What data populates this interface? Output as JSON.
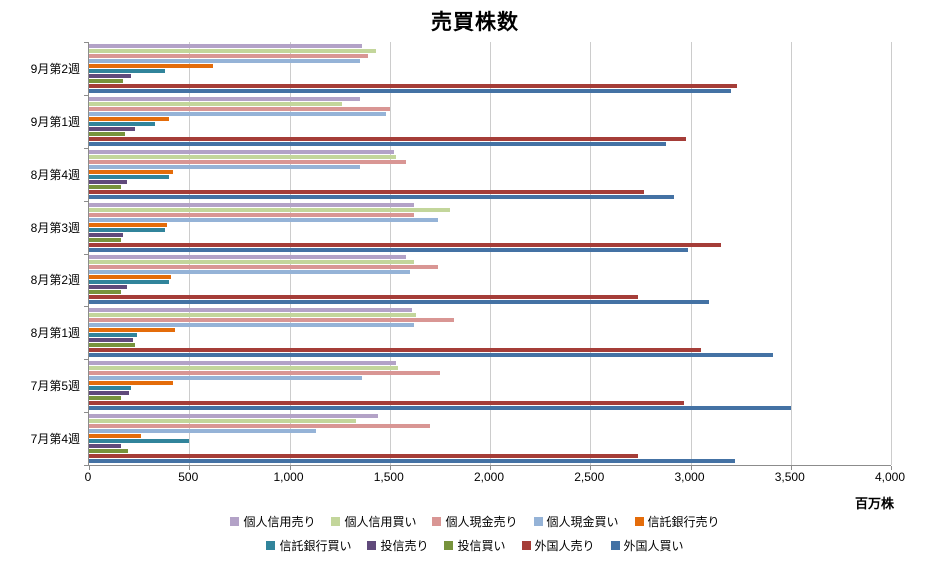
{
  "title": "売買株数",
  "axis_unit_label": "百万株",
  "chart_data": {
    "type": "bar",
    "orientation": "horizontal",
    "title": "売買株数",
    "xlabel": "百万株",
    "ylabel": "",
    "xlim": [
      0,
      4000
    ],
    "x_ticks": [
      0,
      500,
      1000,
      1500,
      2000,
      2500,
      3000,
      3500,
      4000
    ],
    "x_tick_labels": [
      "0",
      "500",
      "1,000",
      "1,500",
      "2,000",
      "2,500",
      "3,000",
      "3,500",
      "4,000"
    ],
    "grid": "vertical",
    "legend_position": "bottom",
    "categories": [
      "9月第2週",
      "9月第1週",
      "8月第4週",
      "8月第3週",
      "8月第2週",
      "8月第1週",
      "7月第5週",
      "7月第4週"
    ],
    "series": [
      {
        "name": "個人信用売り",
        "color": "#B3A2C7",
        "values": [
          1360,
          1350,
          1520,
          1620,
          1580,
          1610,
          1530,
          1440
        ]
      },
      {
        "name": "個人信用買い",
        "color": "#C3D69B",
        "values": [
          1430,
          1260,
          1530,
          1800,
          1620,
          1630,
          1540,
          1330
        ]
      },
      {
        "name": "個人現金売り",
        "color": "#D99694",
        "values": [
          1390,
          1500,
          1580,
          1620,
          1740,
          1820,
          1750,
          1700
        ]
      },
      {
        "name": "個人現金買い",
        "color": "#95B3D7",
        "values": [
          1350,
          1480,
          1350,
          1740,
          1600,
          1620,
          1360,
          1130
        ]
      },
      {
        "name": "信託銀行売り",
        "color": "#E46C0A",
        "values": [
          620,
          400,
          420,
          390,
          410,
          430,
          420,
          260
        ]
      },
      {
        "name": "信託銀行買い",
        "color": "#31849B",
        "values": [
          380,
          330,
          400,
          380,
          400,
          240,
          210,
          500
        ]
      },
      {
        "name": "投信売り",
        "color": "#604A7B",
        "values": [
          210,
          230,
          190,
          170,
          190,
          220,
          200,
          160
        ]
      },
      {
        "name": "投信買い",
        "color": "#77933C",
        "values": [
          170,
          180,
          160,
          160,
          160,
          230,
          160,
          195
        ]
      },
      {
        "name": "外国人売り",
        "color": "#A53D38",
        "values": [
          3230,
          2980,
          2770,
          3150,
          2740,
          3050,
          2970,
          2740
        ]
      },
      {
        "name": "外国人買い",
        "color": "#4472A4",
        "values": [
          3200,
          2880,
          2920,
          2990,
          3090,
          3410,
          3500,
          3220
        ]
      }
    ],
    "legend_rows": [
      [
        "個人信用売り",
        "個人信用買い",
        "個人現金売り",
        "個人現金買い",
        "信託銀行売り"
      ],
      [
        "信託銀行買い",
        "投信売り",
        "投信買い",
        "外国人売り",
        "外国人買い"
      ]
    ]
  }
}
